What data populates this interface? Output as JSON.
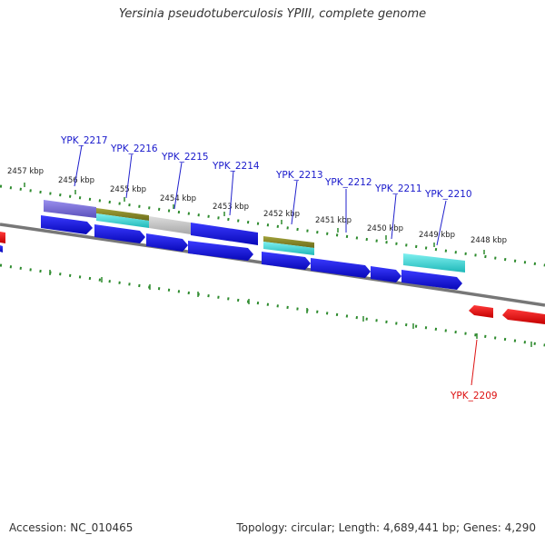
{
  "title": "Yersinia pseudotuberculosis YPIII, complete genome",
  "footer": {
    "accession": "Accession: NC_010465",
    "summary": "Topology: circular; Length: 4,689,441 bp; Genes: 4,290"
  },
  "scale_labels": [
    "2457 kbp",
    "2456 kbp",
    "2455 kbp",
    "2454 kbp",
    "2453 kbp",
    "2452 kbp",
    "2451 kbp",
    "2450 kbp",
    "2449 kbp",
    "2448 kbp"
  ],
  "genes": [
    {
      "label": "YPK_2217",
      "strand": "forward",
      "color": "#1a1acc"
    },
    {
      "label": "YPK_2216",
      "strand": "forward",
      "color": "#1a1acc"
    },
    {
      "label": "YPK_2215",
      "strand": "forward",
      "color": "#1a1acc"
    },
    {
      "label": "YPK_2214",
      "strand": "forward",
      "color": "#1a1acc"
    },
    {
      "label": "YPK_2213",
      "strand": "forward",
      "color": "#1a1acc"
    },
    {
      "label": "YPK_2212",
      "strand": "forward",
      "color": "#1a1acc"
    },
    {
      "label": "YPK_2211",
      "strand": "forward",
      "color": "#1a1acc"
    },
    {
      "label": "YPK_2210",
      "strand": "forward",
      "color": "#1a1acc"
    },
    {
      "label": "YPK_2209",
      "strand": "reverse",
      "color": "#dd1111"
    }
  ],
  "colors": {
    "forward_gene": "#1010dd",
    "reverse_gene": "#ee1111",
    "scale_ticks": "#2e8b2e",
    "backbone": "#777777",
    "cog_purple": "#7b6fd6",
    "cog_olive": "#8a8a2a",
    "cog_cyan": "#33cccc",
    "cog_grey": "#bbbbbb"
  }
}
